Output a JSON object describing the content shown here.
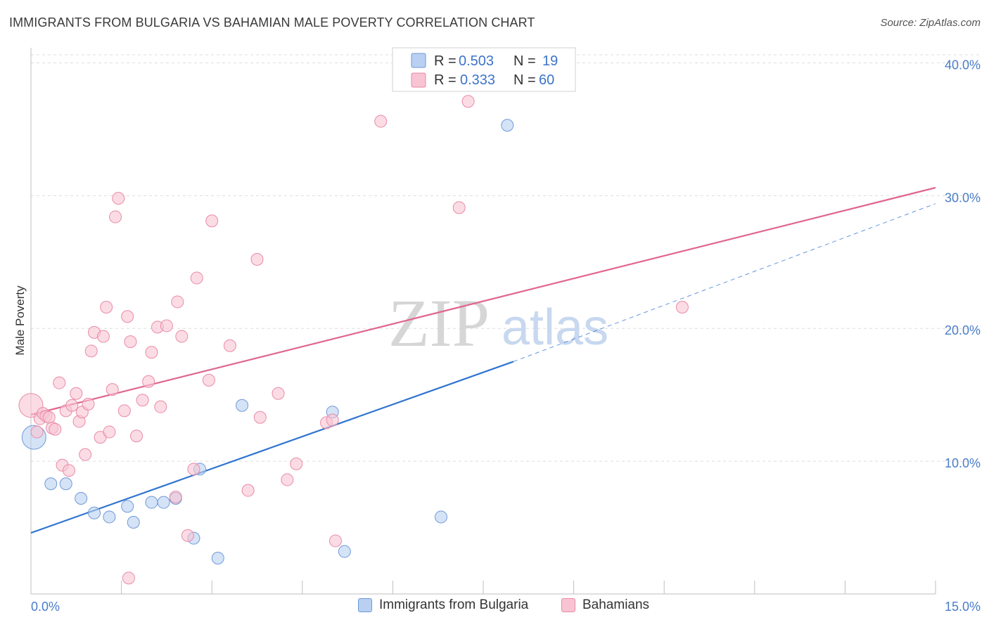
{
  "header": {
    "title": "IMMIGRANTS FROM BULGARIA VS BAHAMIAN MALE POVERTY CORRELATION CHART",
    "source": "Source: ZipAtlas.com"
  },
  "watermark": {
    "part1": "ZIP",
    "part2": "atlas"
  },
  "legend": {
    "series": [
      {
        "r_label": "R = ",
        "r_value": "0.503",
        "n_label": "N = ",
        "n_value": "19"
      },
      {
        "r_label": "R = ",
        "r_value": "0.333",
        "n_label": "N = ",
        "n_value": "60"
      }
    ]
  },
  "bottom_legend": {
    "items": [
      "Immigrants from Bulgaria",
      "Bahamians"
    ]
  },
  "colors": {
    "blue_fill": "#b9d0f2",
    "blue_stroke": "#6f9ad8",
    "blue_line": "#2f74d0",
    "pink_fill": "#f8c4d3",
    "pink_stroke": "#e98aa7",
    "pink_line": "#e0668f",
    "grid": "#dddddd",
    "tick_label": "#4a7cc8"
  },
  "chart_data": {
    "type": "scatter",
    "title": "IMMIGRANTS FROM BULGARIA VS BAHAMIAN MALE POVERTY CORRELATION CHART",
    "xlabel": "",
    "ylabel": "Male Poverty",
    "xlim": [
      0,
      15
    ],
    "ylim": [
      0,
      40.5
    ],
    "x_tick_labels": [
      "0.0%",
      "15.0%"
    ],
    "y_ticks": [
      10,
      20,
      30,
      40
    ],
    "y_tick_labels": [
      "10.0%",
      "20.0%",
      "30.0%",
      "40.0%"
    ],
    "grid": true,
    "series": [
      {
        "name": "Immigrants from Bulgaria",
        "color": "blue",
        "points": [
          {
            "x": 0.05,
            "y": 11.8,
            "big": true
          },
          {
            "x": 0.33,
            "y": 8.3
          },
          {
            "x": 0.58,
            "y": 8.3
          },
          {
            "x": 0.83,
            "y": 7.2
          },
          {
            "x": 1.05,
            "y": 6.1
          },
          {
            "x": 1.3,
            "y": 5.8
          },
          {
            "x": 1.6,
            "y": 6.6
          },
          {
            "x": 1.7,
            "y": 5.4
          },
          {
            "x": 2.0,
            "y": 6.9
          },
          {
            "x": 2.2,
            "y": 6.9
          },
          {
            "x": 2.4,
            "y": 7.2
          },
          {
            "x": 2.7,
            "y": 4.2
          },
          {
            "x": 2.8,
            "y": 9.4
          },
          {
            "x": 3.1,
            "y": 2.7
          },
          {
            "x": 3.5,
            "y": 14.2
          },
          {
            "x": 5.0,
            "y": 13.7
          },
          {
            "x": 5.2,
            "y": 3.2
          },
          {
            "x": 6.8,
            "y": 5.8
          },
          {
            "x": 7.9,
            "y": 35.3
          }
        ],
        "trend": {
          "x0": 0,
          "y0": 4.6,
          "x1": 8.0,
          "y1": 17.5,
          "dash_to_x": 15.0,
          "dash_to_y": 29.4
        }
      },
      {
        "name": "Bahamians",
        "color": "pink",
        "points": [
          {
            "x": 0.0,
            "y": 14.2,
            "big": true
          },
          {
            "x": 0.1,
            "y": 12.2
          },
          {
            "x": 0.15,
            "y": 13.2
          },
          {
            "x": 0.2,
            "y": 13.6
          },
          {
            "x": 0.25,
            "y": 13.4
          },
          {
            "x": 0.3,
            "y": 13.3
          },
          {
            "x": 0.35,
            "y": 12.5
          },
          {
            "x": 0.4,
            "y": 12.4
          },
          {
            "x": 0.47,
            "y": 15.9
          },
          {
            "x": 0.52,
            "y": 9.7
          },
          {
            "x": 0.58,
            "y": 13.8
          },
          {
            "x": 0.63,
            "y": 9.3
          },
          {
            "x": 0.68,
            "y": 14.2
          },
          {
            "x": 0.75,
            "y": 15.1
          },
          {
            "x": 0.8,
            "y": 13.0
          },
          {
            "x": 0.85,
            "y": 13.7
          },
          {
            "x": 0.9,
            "y": 10.5
          },
          {
            "x": 0.95,
            "y": 14.3
          },
          {
            "x": 1.0,
            "y": 18.3
          },
          {
            "x": 1.05,
            "y": 19.7
          },
          {
            "x": 1.15,
            "y": 11.8
          },
          {
            "x": 1.2,
            "y": 19.4
          },
          {
            "x": 1.25,
            "y": 21.6
          },
          {
            "x": 1.3,
            "y": 12.2
          },
          {
            "x": 1.35,
            "y": 15.4
          },
          {
            "x": 1.4,
            "y": 28.4
          },
          {
            "x": 1.45,
            "y": 29.8
          },
          {
            "x": 1.55,
            "y": 13.8
          },
          {
            "x": 1.6,
            "y": 20.9
          },
          {
            "x": 1.62,
            "y": 1.2
          },
          {
            "x": 1.65,
            "y": 19.0
          },
          {
            "x": 1.75,
            "y": 11.9
          },
          {
            "x": 1.85,
            "y": 14.6
          },
          {
            "x": 1.95,
            "y": 16.0
          },
          {
            "x": 2.0,
            "y": 18.2
          },
          {
            "x": 2.1,
            "y": 20.1
          },
          {
            "x": 2.15,
            "y": 14.1
          },
          {
            "x": 2.25,
            "y": 20.2
          },
          {
            "x": 2.4,
            "y": 7.3
          },
          {
            "x": 2.43,
            "y": 22.0
          },
          {
            "x": 2.5,
            "y": 19.4
          },
          {
            "x": 2.6,
            "y": 4.4
          },
          {
            "x": 2.7,
            "y": 9.4
          },
          {
            "x": 2.75,
            "y": 23.8
          },
          {
            "x": 2.95,
            "y": 16.1
          },
          {
            "x": 3.0,
            "y": 28.1
          },
          {
            "x": 3.3,
            "y": 18.7
          },
          {
            "x": 3.6,
            "y": 7.8
          },
          {
            "x": 3.75,
            "y": 25.2
          },
          {
            "x": 3.8,
            "y": 13.3
          },
          {
            "x": 4.1,
            "y": 15.1
          },
          {
            "x": 4.25,
            "y": 8.6
          },
          {
            "x": 4.4,
            "y": 9.8
          },
          {
            "x": 4.9,
            "y": 12.9
          },
          {
            "x": 5.0,
            "y": 13.1
          },
          {
            "x": 5.05,
            "y": 4.0
          },
          {
            "x": 5.8,
            "y": 35.6
          },
          {
            "x": 7.1,
            "y": 29.1
          },
          {
            "x": 7.25,
            "y": 37.1
          },
          {
            "x": 10.8,
            "y": 21.6
          }
        ],
        "trend": {
          "x0": 0,
          "y0": 13.5,
          "x1": 15.0,
          "y1": 30.6
        }
      }
    ]
  }
}
